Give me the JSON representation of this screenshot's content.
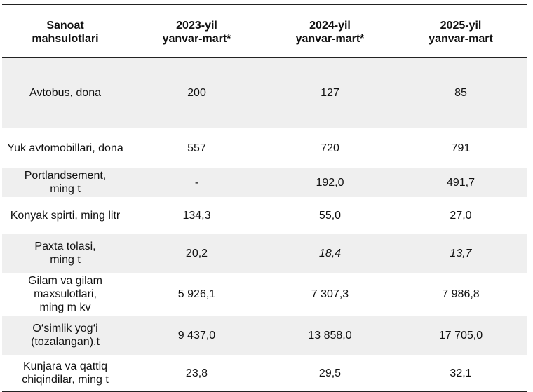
{
  "table": {
    "headers": {
      "product": [
        "Sanoat",
        "mahsulotlari"
      ],
      "y2023": [
        "2023-yil",
        "yanvar-mart*"
      ],
      "y2024": [
        "2024-yil",
        "yanvar-mart*"
      ],
      "y2025": [
        "2025-yil",
        "yanvar-mart"
      ]
    },
    "rows": [
      {
        "name": [
          "Avtobus, dona"
        ],
        "v2023": "200",
        "v2024": "127",
        "v2025": "85"
      },
      {
        "name": [
          "Yuk avtomobillari, dona"
        ],
        "v2023": "557",
        "v2024": "720",
        "v2025": "791"
      },
      {
        "name": [
          "Portlandsement,",
          "ming t"
        ],
        "v2023": "-",
        "v2024": "192,0",
        "v2025": "491,7"
      },
      {
        "name": [
          "Konyak spirti, ming litr"
        ],
        "v2023": "134,3",
        "v2024": "55,0",
        "v2025": "27,0"
      },
      {
        "name": [
          "Paxta tolasi,",
          "ming t"
        ],
        "v2023": "20,2",
        "v2024": "18,4",
        "v2025": "13,7"
      },
      {
        "name": [
          "Gilam va gilam",
          "maxsulotlari,",
          "ming m kv"
        ],
        "v2023": "5 926,1",
        "v2024": "7 307,3",
        "v2025": "7 986,8"
      },
      {
        "name": [
          "O‘simlik yog‘i",
          "(tozalangan),t"
        ],
        "v2023": "9 437,0",
        "v2024": "13 858,0",
        "v2025": "17 705,0"
      },
      {
        "name": [
          "Kunjara va qattiq",
          "chiqindilar, ming t"
        ],
        "v2023": "23,8",
        "v2024": "29,5",
        "v2025": "32,1"
      }
    ]
  }
}
